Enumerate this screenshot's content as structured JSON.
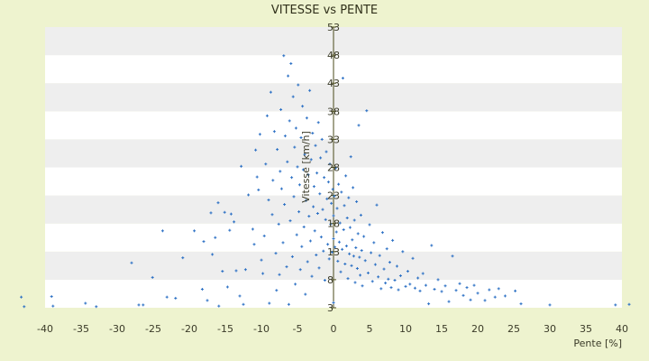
{
  "chart_data": {
    "type": "scatter",
    "title": "VITESSE vs PENTE",
    "xlabel": "Pente [%]",
    "ylabel": "Vitesse [km/h]",
    "xlim": [
      -40,
      40
    ],
    "ylim": [
      3,
      53
    ],
    "xticks": [
      -40,
      -35,
      -30,
      -25,
      -20,
      -15,
      -10,
      -5,
      0,
      5,
      10,
      15,
      20,
      25,
      30,
      35,
      40
    ],
    "yticks": [
      3,
      8,
      13,
      18,
      23,
      28,
      33,
      38,
      43,
      48,
      53
    ],
    "grid": "alternating horizontal bands",
    "legend": "none",
    "colors": {
      "marker": "#2a6fc4",
      "band_light": "#ffffff",
      "band_dark": "#eeeeee",
      "background": "#eef3cf"
    },
    "series": [
      {
        "points": [
          [
            -43.3,
            4.9
          ],
          [
            -42.9,
            3.2
          ],
          [
            -39.1,
            5.0
          ],
          [
            -38.9,
            3.3
          ],
          [
            -34.4,
            3.8
          ],
          [
            -32.9,
            3.2
          ],
          [
            -28.0,
            11.0
          ],
          [
            -27.0,
            3.5
          ],
          [
            -26.4,
            3.5
          ],
          [
            -25.1,
            8.4
          ],
          [
            -23.7,
            16.7
          ],
          [
            -23.1,
            4.9
          ],
          [
            -21.9,
            4.7
          ],
          [
            -20.9,
            11.9
          ],
          [
            -19.3,
            16.7
          ],
          [
            -18.2,
            6.3
          ],
          [
            -18.0,
            14.8
          ],
          [
            -17.5,
            4.3
          ],
          [
            -17.0,
            19.9
          ],
          [
            -16.8,
            12.5
          ],
          [
            -16.4,
            15.5
          ],
          [
            -16.0,
            21.7
          ],
          [
            -15.9,
            3.3
          ],
          [
            -15.4,
            9.5
          ],
          [
            -15.1,
            20.0
          ],
          [
            -14.7,
            6.7
          ],
          [
            -14.4,
            16.8
          ],
          [
            -14.2,
            19.7
          ],
          [
            -13.8,
            18.3
          ],
          [
            -13.5,
            9.6
          ],
          [
            -13.0,
            5.1
          ],
          [
            -12.8,
            28.2
          ],
          [
            -12.5,
            3.6
          ],
          [
            -12.2,
            9.8
          ],
          [
            -11.8,
            23.1
          ],
          [
            -11.2,
            17.0
          ],
          [
            -11.0,
            14.3
          ],
          [
            -10.8,
            31.1
          ],
          [
            -10.6,
            26.3
          ],
          [
            -10.4,
            24.0
          ],
          [
            -10.2,
            33.9
          ],
          [
            -10.0,
            11.5
          ],
          [
            -9.8,
            9.1
          ],
          [
            -9.6,
            15.8
          ],
          [
            -9.4,
            28.6
          ],
          [
            -9.2,
            37.2
          ],
          [
            -9.0,
            22.2
          ],
          [
            -8.9,
            3.8
          ],
          [
            -8.7,
            41.4
          ],
          [
            -8.5,
            19.6
          ],
          [
            -8.4,
            25.7
          ],
          [
            -8.2,
            34.4
          ],
          [
            -8.0,
            12.7
          ],
          [
            -7.9,
            6.1
          ],
          [
            -7.8,
            31.2
          ],
          [
            -7.6,
            17.9
          ],
          [
            -7.5,
            8.9
          ],
          [
            -7.4,
            27.3
          ],
          [
            -7.3,
            38.3
          ],
          [
            -7.2,
            24.2
          ],
          [
            -7.0,
            14.6
          ],
          [
            -6.9,
            47.9
          ],
          [
            -6.8,
            21.4
          ],
          [
            -6.7,
            33.6
          ],
          [
            -6.5,
            10.3
          ],
          [
            -6.4,
            29.0
          ],
          [
            -6.3,
            44.3
          ],
          [
            -6.2,
            3.6
          ],
          [
            -6.1,
            36.3
          ],
          [
            -6.0,
            18.5
          ],
          [
            -5.9,
            46.5
          ],
          [
            -5.8,
            26.2
          ],
          [
            -5.7,
            12.1
          ],
          [
            -5.6,
            40.6
          ],
          [
            -5.5,
            22.8
          ],
          [
            -5.4,
            31.6
          ],
          [
            -5.3,
            7.2
          ],
          [
            -5.2,
            35.0
          ],
          [
            -5.1,
            16.0
          ],
          [
            -5.0,
            28.1
          ],
          [
            -4.9,
            42.7
          ],
          [
            -4.8,
            20.1
          ],
          [
            -4.7,
            24.9
          ],
          [
            -4.6,
            9.8
          ],
          [
            -4.5,
            33.3
          ],
          [
            -4.4,
            13.9
          ],
          [
            -4.3,
            38.9
          ],
          [
            -4.2,
            27.6
          ],
          [
            -4.1,
            17.4
          ],
          [
            -4.0,
            30.3
          ],
          [
            -3.9,
            5.4
          ],
          [
            -3.8,
            22.1
          ],
          [
            -3.7,
            36.8
          ],
          [
            -3.6,
            11.2
          ],
          [
            -3.5,
            26.7
          ],
          [
            -3.4,
            19.3
          ],
          [
            -3.3,
            41.7
          ],
          [
            -3.2,
            14.9
          ],
          [
            -3.1,
            29.4
          ],
          [
            -3.0,
            8.6
          ],
          [
            -2.9,
            34.1
          ],
          [
            -2.8,
            21.0
          ],
          [
            -2.7,
            24.6
          ],
          [
            -2.6,
            16.7
          ],
          [
            -2.5,
            31.9
          ],
          [
            -2.4,
            12.4
          ],
          [
            -2.3,
            27.0
          ],
          [
            -2.2,
            19.8
          ],
          [
            -2.1,
            36.0
          ],
          [
            -2.0,
            10.1
          ],
          [
            -1.9,
            23.3
          ],
          [
            -1.8,
            29.7
          ],
          [
            -1.7,
            15.6
          ],
          [
            -1.6,
            33.0
          ],
          [
            -1.5,
            20.5
          ],
          [
            -1.4,
            13.1
          ],
          [
            -1.3,
            26.2
          ],
          [
            -1.2,
            7.9
          ],
          [
            -1.1,
            18.7
          ],
          [
            -1.0,
            30.8
          ],
          [
            -0.9,
            22.4
          ],
          [
            -0.8,
            14.3
          ],
          [
            -0.7,
            25.4
          ],
          [
            -0.6,
            11.7
          ],
          [
            -0.5,
            28.6
          ],
          [
            -0.4,
            17.9
          ],
          [
            -0.3,
            21.6
          ],
          [
            -0.2,
            12.9
          ],
          [
            -0.1,
            24.1
          ],
          [
            0.0,
            15.3
          ],
          [
            0.0,
            19.4
          ],
          [
            0.0,
            3.9
          ],
          [
            0.1,
            22.9
          ],
          [
            0.2,
            13.8
          ],
          [
            0.3,
            27.9
          ],
          [
            0.4,
            16.5
          ],
          [
            0.5,
            20.7
          ],
          [
            0.6,
            11.3
          ],
          [
            0.7,
            25.0
          ],
          [
            0.8,
            14.7
          ],
          [
            0.9,
            18.1
          ],
          [
            1.0,
            9.4
          ],
          [
            1.1,
            23.6
          ],
          [
            1.2,
            13.4
          ],
          [
            1.3,
            43.9
          ],
          [
            1.4,
            16.9
          ],
          [
            1.5,
            21.2
          ],
          [
            1.6,
            10.8
          ],
          [
            1.7,
            26.5
          ],
          [
            1.8,
            14.0
          ],
          [
            1.9,
            19.0
          ],
          [
            2.0,
            8.2
          ],
          [
            2.1,
            22.6
          ],
          [
            2.2,
            12.6
          ],
          [
            2.3,
            17.3
          ],
          [
            2.4,
            29.9
          ],
          [
            2.5,
            10.5
          ],
          [
            2.6,
            15.1
          ],
          [
            2.7,
            24.4
          ],
          [
            2.8,
            12.2
          ],
          [
            2.9,
            18.6
          ],
          [
            3.0,
            7.5
          ],
          [
            3.1,
            13.7
          ],
          [
            3.2,
            21.9
          ],
          [
            3.3,
            10.0
          ],
          [
            3.4,
            16.2
          ],
          [
            3.5,
            35.5
          ],
          [
            3.6,
            12.0
          ],
          [
            3.7,
            8.8
          ],
          [
            3.8,
            19.5
          ],
          [
            3.9,
            13.2
          ],
          [
            4.0,
            6.9
          ],
          [
            4.2,
            15.7
          ],
          [
            4.4,
            11.4
          ],
          [
            4.6,
            38.1
          ],
          [
            4.8,
            9.2
          ],
          [
            5.0,
            17.8
          ],
          [
            5.2,
            12.8
          ],
          [
            5.4,
            7.7
          ],
          [
            5.6,
            14.6
          ],
          [
            5.8,
            10.7
          ],
          [
            6.0,
            21.3
          ],
          [
            6.2,
            8.5
          ],
          [
            6.4,
            12.3
          ],
          [
            6.6,
            6.4
          ],
          [
            6.8,
            16.4
          ],
          [
            7.0,
            9.9
          ],
          [
            7.2,
            7.4
          ],
          [
            7.4,
            13.5
          ],
          [
            7.6,
            8.1
          ],
          [
            7.8,
            11.1
          ],
          [
            8.0,
            6.6
          ],
          [
            8.2,
            15.0
          ],
          [
            8.5,
            7.9
          ],
          [
            8.8,
            10.4
          ],
          [
            9.0,
            6.2
          ],
          [
            9.3,
            8.7
          ],
          [
            9.6,
            13.0
          ],
          [
            10.0,
            6.8
          ],
          [
            10.3,
            9.5
          ],
          [
            10.6,
            7.2
          ],
          [
            11.0,
            11.8
          ],
          [
            11.3,
            6.5
          ],
          [
            11.7,
            8.3
          ],
          [
            12.0,
            6.0
          ],
          [
            12.4,
            9.1
          ],
          [
            12.8,
            7.0
          ],
          [
            13.2,
            3.7
          ],
          [
            13.6,
            14.1
          ],
          [
            14.0,
            6.3
          ],
          [
            14.5,
            8.0
          ],
          [
            15.0,
            5.9
          ],
          [
            15.5,
            6.9
          ],
          [
            16.0,
            4.1
          ],
          [
            16.5,
            12.2
          ],
          [
            17.0,
            6.1
          ],
          [
            17.5,
            7.3
          ],
          [
            18.0,
            5.2
          ],
          [
            18.5,
            6.6
          ],
          [
            19.0,
            4.4
          ],
          [
            19.5,
            7.0
          ],
          [
            20.0,
            5.6
          ],
          [
            21.0,
            4.3
          ],
          [
            21.6,
            6.2
          ],
          [
            22.4,
            4.9
          ],
          [
            22.9,
            6.4
          ],
          [
            23.8,
            5.1
          ],
          [
            25.2,
            6.0
          ],
          [
            26.0,
            3.7
          ],
          [
            30.0,
            3.5
          ],
          [
            39.1,
            3.5
          ],
          [
            41.0,
            3.6
          ]
        ]
      }
    ]
  }
}
